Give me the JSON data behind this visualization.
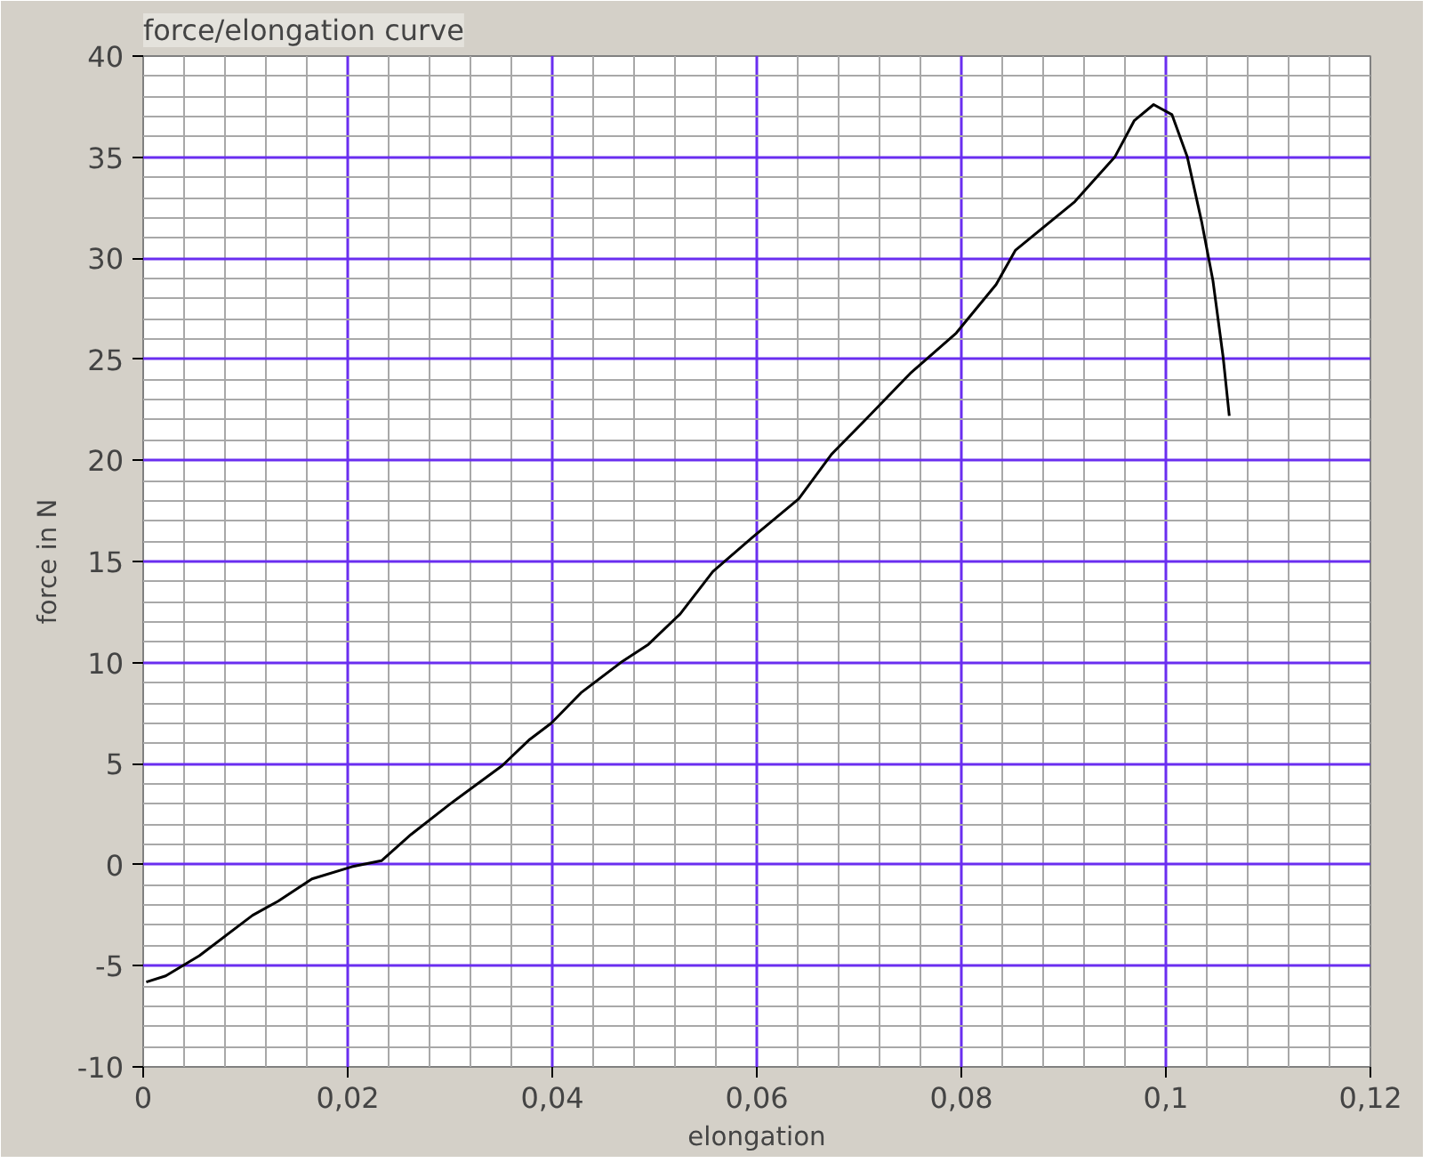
{
  "chart_data": {
    "type": "line",
    "title": "force/elongation curve",
    "xlabel": "elongation",
    "ylabel": "force in N",
    "xlim": [
      0,
      0.12
    ],
    "xticks": [
      {
        "value": 0,
        "label": "0"
      },
      {
        "value": 0.02,
        "label": "0,02"
      },
      {
        "value": 0.04,
        "label": "0,04"
      },
      {
        "value": 0.06,
        "label": "0,06"
      },
      {
        "value": 0.08,
        "label": "0,08"
      },
      {
        "value": 0.1,
        "label": "0,1"
      },
      {
        "value": 0.12,
        "label": "0,12"
      }
    ],
    "ylim": [
      -10,
      40
    ],
    "yticks": [
      -10,
      -5,
      0,
      5,
      10,
      15,
      20,
      25,
      30,
      35,
      40
    ],
    "grid": true,
    "marker": "none",
    "line_style": "solid",
    "series": [
      {
        "color": "#000000",
        "x": [
          0.0003,
          0.0022,
          0.0055,
          0.0107,
          0.0132,
          0.0165,
          0.0204,
          0.0233,
          0.0262,
          0.03,
          0.0351,
          0.0378,
          0.0399,
          0.0428,
          0.0467,
          0.0494,
          0.0525,
          0.0557,
          0.0596,
          0.0641,
          0.0673,
          0.0706,
          0.075,
          0.0795,
          0.0834,
          0.0853,
          0.0911,
          0.095,
          0.0969,
          0.0988,
          0.1006,
          0.1021,
          0.1035,
          0.1046,
          0.1056,
          0.1062
        ],
        "values": [
          -5.8,
          -5.5,
          -4.5,
          -2.5,
          -1.8,
          -0.7,
          -0.1,
          0.2,
          1.5,
          3.0,
          4.9,
          6.2,
          7.0,
          8.5,
          10.0,
          10.9,
          12.4,
          14.5,
          16.2,
          18.1,
          20.3,
          22.0,
          24.3,
          26.3,
          28.7,
          30.4,
          32.8,
          35.0,
          36.8,
          37.6,
          37.1,
          35.0,
          31.8,
          28.9,
          25.1,
          22.2
        ]
      }
    ]
  }
}
